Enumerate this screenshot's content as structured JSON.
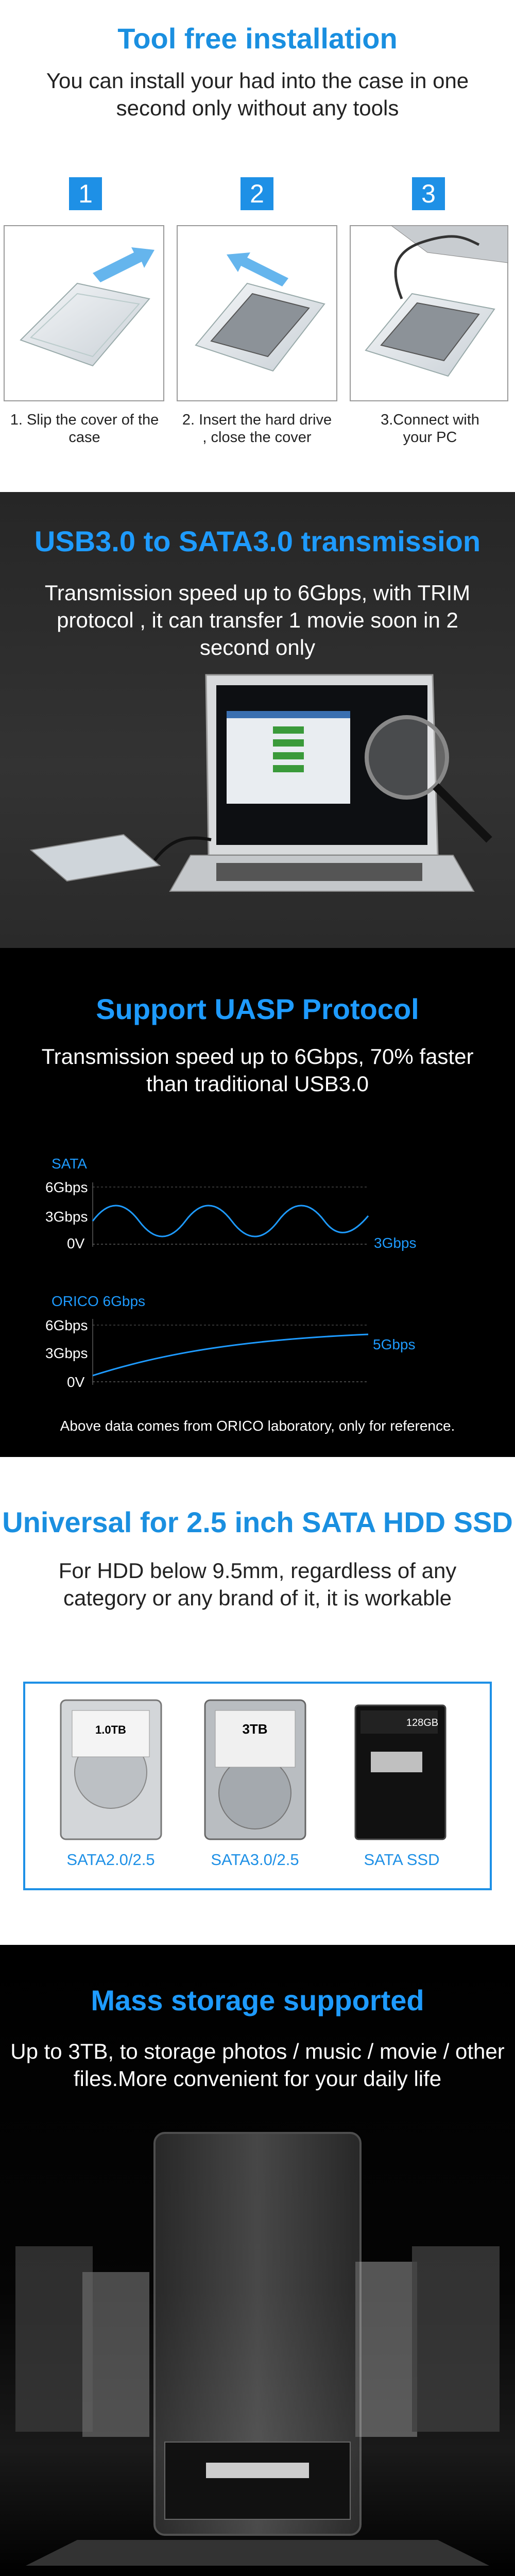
{
  "installation": {
    "title": "Tool free installation",
    "subtitle": "You can install your had into the case in one second only without any tools",
    "steps": [
      {
        "number": "1",
        "caption": "1. Slip the cover of the case"
      },
      {
        "number": "2",
        "caption": "2. Insert the hard drive , close the cover"
      },
      {
        "number": "3",
        "caption": "3.Connect with your PC"
      }
    ]
  },
  "transmission": {
    "title": "USB3.0 to SATA3.0 transmission",
    "text": "Transmission speed up to 6Gbps, with TRIM protocol , it can transfer 1 movie soon in 2 second only"
  },
  "uasp": {
    "title": "Support UASP Protocol",
    "text": "Transmission speed up to 6Gbps, 70% faster than traditional USB3.0",
    "charts": [
      {
        "label": "SATA",
        "ticks": [
          "6Gbps",
          "3Gbps",
          "0V"
        ],
        "speed": "3Gbps"
      },
      {
        "label": "ORICO 6Gbps",
        "ticks": [
          "6Gbps",
          "3Gbps",
          "0V"
        ],
        "speed": "5Gbps"
      }
    ],
    "note": "Above data comes from ORICO laboratory, only for reference."
  },
  "universal": {
    "title": "Universal for 2.5 inch SATA HDD SSD",
    "text": "For HDD below 9.5mm, regardless of any category or any brand of it, it is workable",
    "drives": [
      {
        "label": "SATA2.0/2.5",
        "badge": "1.0TB"
      },
      {
        "label": "SATA3.0/2.5",
        "badge": "3TB"
      },
      {
        "label": "SATA SSD",
        "badge": "128GB"
      }
    ]
  },
  "storage": {
    "title": "Mass storage supported",
    "text": "Up to 3TB, to storage photos / music / movie / other files.More convenient for your daily life"
  }
}
